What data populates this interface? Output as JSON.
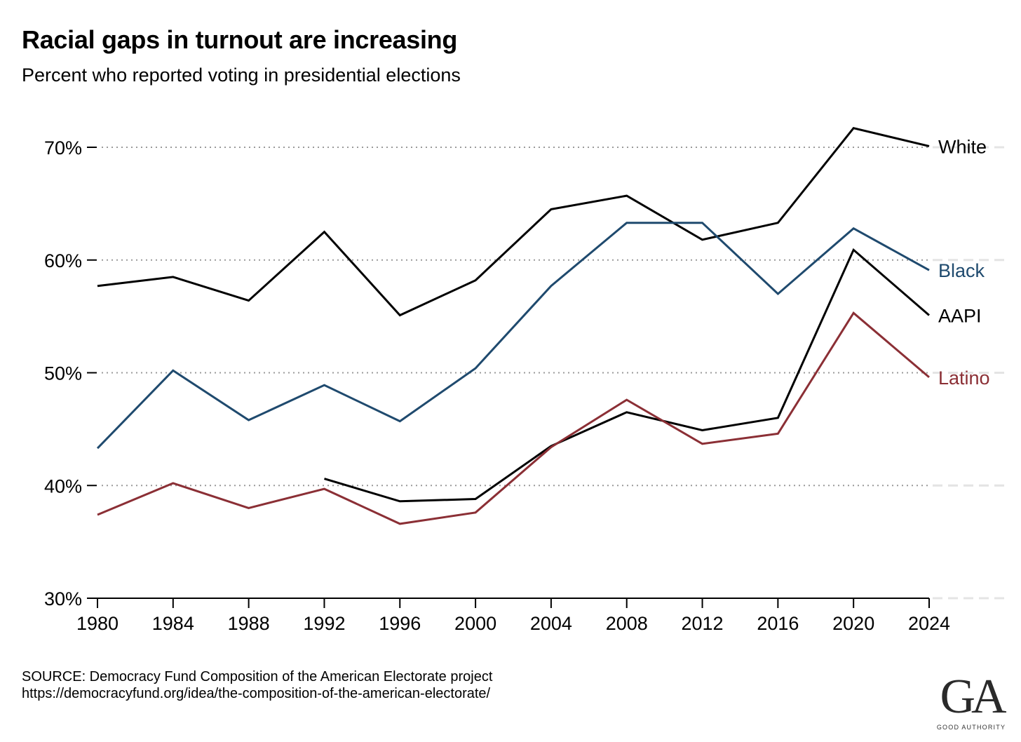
{
  "header": {
    "title": "Racial gaps in turnout are increasing",
    "subtitle": "Percent who reported voting in presidential elections"
  },
  "footer": {
    "source_line": "SOURCE: Democracy Fund Composition of the American Electorate project",
    "url_line": "https://democracyfund.org/idea/the-composition-of-the-american-electorate/",
    "logo_mark": "GA",
    "logo_text": "GOOD AUTHORITY"
  },
  "chart_data": {
    "type": "line",
    "title": "Racial gaps in turnout are increasing",
    "subtitle": "Percent who reported voting in presidential elections",
    "xlabel": "",
    "ylabel": "",
    "x": [
      1980,
      1984,
      1988,
      1992,
      1996,
      2000,
      2004,
      2008,
      2012,
      2016,
      2020,
      2024
    ],
    "ylim": [
      30,
      70
    ],
    "yticks": [
      30,
      40,
      50,
      60,
      70
    ],
    "ytick_labels": [
      "30%",
      "40%",
      "50%",
      "60%",
      "70%"
    ],
    "grid": "horizontal dotted",
    "legend": "direct labels at right end of lines",
    "series": [
      {
        "name": "White",
        "color": "#000000",
        "values": [
          57.7,
          58.5,
          56.4,
          62.5,
          55.1,
          58.2,
          64.5,
          65.7,
          61.8,
          63.3,
          71.7,
          70.1
        ]
      },
      {
        "name": "Black",
        "color": "#1f4a6e",
        "values": [
          43.3,
          50.2,
          45.8,
          48.9,
          45.7,
          50.4,
          57.7,
          63.3,
          63.3,
          57.0,
          62.8,
          59.1
        ]
      },
      {
        "name": "AAPI",
        "color": "#000000",
        "values": [
          null,
          null,
          null,
          40.6,
          38.6,
          38.8,
          43.5,
          46.5,
          44.9,
          46.0,
          60.9,
          55.1
        ]
      },
      {
        "name": "Latino",
        "color": "#8b2f35",
        "values": [
          37.4,
          40.2,
          38.0,
          39.7,
          36.6,
          37.6,
          43.4,
          47.6,
          43.7,
          44.6,
          55.3,
          49.6
        ]
      }
    ]
  }
}
